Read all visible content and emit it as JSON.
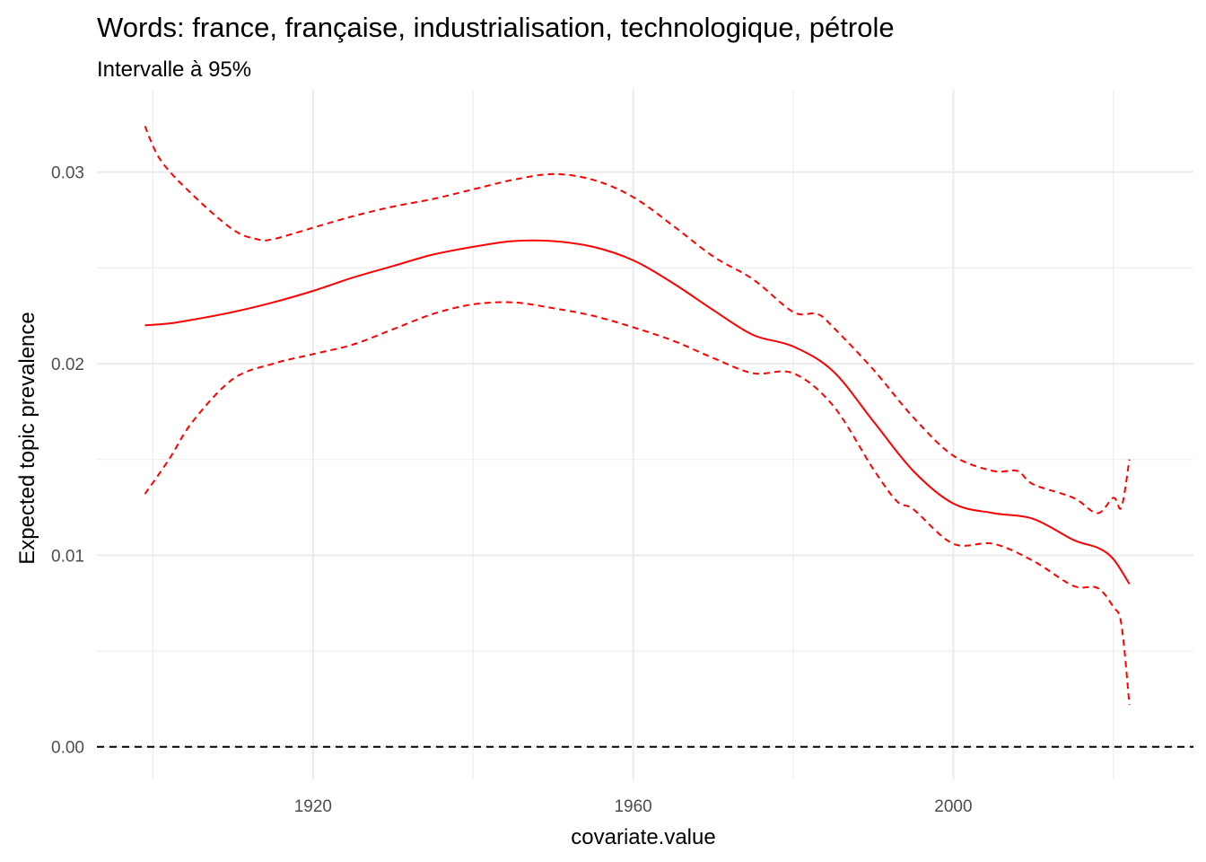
{
  "chart_data": {
    "type": "line",
    "title": "Words: france, française, industrialisation, technologique, pétrole",
    "subtitle": "Intervalle à 95%",
    "xlabel": "covariate.value",
    "ylabel": "Expected topic prevalence",
    "xlim": [
      1893,
      2030
    ],
    "ylim": [
      -0.0017,
      0.0343
    ],
    "x_ticks": [
      1920,
      1960,
      2000
    ],
    "x_tick_labels": [
      "1920",
      "1960",
      "2000"
    ],
    "y_ticks": [
      0.0,
      0.01,
      0.02,
      0.03
    ],
    "y_tick_labels": [
      "0.00",
      "0.01",
      "0.02",
      "0.03"
    ],
    "grid": true,
    "reference_line": {
      "y": 0,
      "style": "dashed",
      "color": "#000000"
    },
    "colors": {
      "series": "#ff0000",
      "grid": "#ebebeb",
      "reference": "#000000"
    },
    "series": [
      {
        "role": "estimate",
        "style": "solid",
        "x": [
          1899,
          1902,
          1905,
          1910,
          1915,
          1920,
          1925,
          1930,
          1935,
          1940,
          1945,
          1950,
          1955,
          1960,
          1965,
          1970,
          1975,
          1980,
          1985,
          1990,
          1995,
          2000,
          2005,
          2010,
          2015,
          2018,
          2020,
          2022
        ],
        "y": [
          0.022,
          0.0221,
          0.0223,
          0.0227,
          0.0232,
          0.0238,
          0.0245,
          0.0251,
          0.0257,
          0.0261,
          0.0264,
          0.0264,
          0.0261,
          0.0254,
          0.0242,
          0.0228,
          0.0215,
          0.0209,
          0.0196,
          0.017,
          0.0144,
          0.0127,
          0.0122,
          0.0119,
          0.0108,
          0.0104,
          0.0098,
          0.0085
        ]
      },
      {
        "role": "upper-95",
        "style": "dashed",
        "x": [
          1899,
          1901,
          1905,
          1910,
          1913,
          1915,
          1920,
          1925,
          1930,
          1935,
          1940,
          1945,
          1950,
          1955,
          1960,
          1965,
          1970,
          1975,
          1980,
          1983,
          1985,
          1990,
          1995,
          2000,
          2005,
          2008,
          2010,
          2015,
          2018,
          2020,
          2021,
          2022
        ],
        "y": [
          0.0324,
          0.0306,
          0.0288,
          0.027,
          0.0265,
          0.0265,
          0.0271,
          0.0277,
          0.0282,
          0.0286,
          0.0291,
          0.0296,
          0.0299,
          0.0296,
          0.0287,
          0.0272,
          0.0256,
          0.0244,
          0.0227,
          0.0226,
          0.0219,
          0.0197,
          0.0172,
          0.0152,
          0.0144,
          0.0144,
          0.0137,
          0.013,
          0.0122,
          0.013,
          0.0125,
          0.015
        ]
      },
      {
        "role": "lower-95",
        "style": "dashed",
        "x": [
          1899,
          1902,
          1905,
          1910,
          1915,
          1920,
          1925,
          1930,
          1935,
          1940,
          1945,
          1950,
          1955,
          1960,
          1965,
          1970,
          1975,
          1980,
          1985,
          1990,
          1993,
          1995,
          2000,
          2005,
          2010,
          2015,
          2018,
          2020,
          2021,
          2022
        ],
        "y": [
          0.0132,
          0.015,
          0.017,
          0.0192,
          0.02,
          0.0205,
          0.021,
          0.0218,
          0.0226,
          0.0231,
          0.0232,
          0.0229,
          0.0225,
          0.0219,
          0.0212,
          0.0203,
          0.0195,
          0.0195,
          0.0178,
          0.0145,
          0.0128,
          0.0124,
          0.0106,
          0.0106,
          0.0097,
          0.0084,
          0.0083,
          0.0073,
          0.0064,
          0.0022
        ]
      }
    ]
  }
}
